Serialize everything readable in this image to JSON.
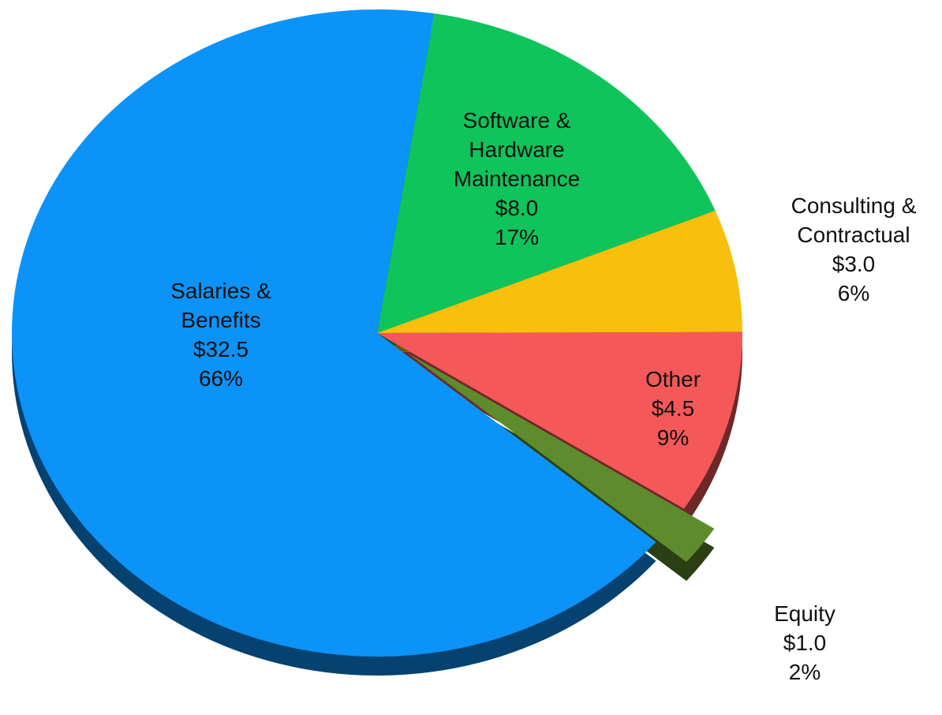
{
  "chart_data": {
    "type": "pie",
    "categories": [
      "Software &\nHardware\nMaintenance",
      "Consulting &\nContractual",
      "Other",
      "Equity",
      "Salaries &\nBenefits"
    ],
    "values": [
      8.0,
      3.0,
      4.5,
      1.0,
      32.5
    ],
    "value_labels": [
      "$8.0",
      "$3.0",
      "$4.5",
      "$1.0",
      "$32.5"
    ],
    "percent_labels": [
      "17%",
      "6%",
      "9%",
      "2%",
      "66%"
    ],
    "colors": [
      "#10c45c",
      "#f8bf0c",
      "#f55858",
      "#5e8c2c",
      "#0b93f8"
    ],
    "exploded": [
      false,
      false,
      false,
      true,
      false
    ]
  }
}
